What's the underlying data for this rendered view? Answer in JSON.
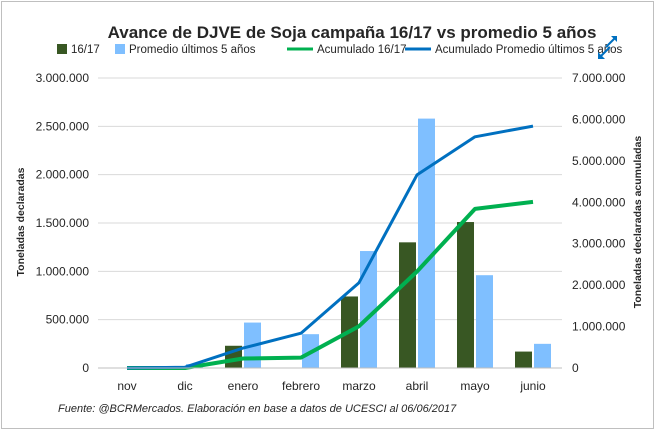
{
  "chart_data": {
    "type": "bar",
    "title": "Avance de DJVE de Soja campaña 16/17 vs promedio 5 años",
    "categories": [
      "nov",
      "dic",
      "enero",
      "febrero",
      "marzo",
      "abril",
      "mayo",
      "junio"
    ],
    "series": [
      {
        "name": "16/17",
        "type": "bar",
        "axis": "left",
        "color": "#385723",
        "values": [
          0,
          0,
          230000,
          5000,
          740000,
          1300000,
          1510000,
          170000
        ]
      },
      {
        "name": "Promedio últimos 5 años",
        "type": "bar",
        "axis": "left",
        "color": "#7fbfff",
        "values": [
          0,
          40000,
          470000,
          350000,
          1210000,
          2580000,
          960000,
          250000
        ]
      },
      {
        "name": "Acumulado 16/17",
        "type": "line",
        "axis": "right",
        "color": "#00b050",
        "values": [
          0,
          0,
          230000,
          250000,
          1010000,
          2330000,
          3840000,
          4010000
        ]
      },
      {
        "name": "Acumulado Promedio últimos 5 años",
        "type": "line",
        "axis": "right",
        "color": "#0070c0",
        "values": [
          0,
          20000,
          480000,
          840000,
          2060000,
          4660000,
          5580000,
          5840000
        ]
      }
    ],
    "ylabel": "Toneladas declaradas",
    "y2label": "Toneladas declaradas acumuladas",
    "ylim": [
      0,
      3000000
    ],
    "y2lim": [
      0,
      7000000
    ],
    "yticks": [
      "0",
      "500.000",
      "1.000.000",
      "1.500.000",
      "2.000.000",
      "2.500.000",
      "3.000.000"
    ],
    "y2ticks": [
      "0",
      "1.000.000",
      "2.000.000",
      "3.000.000",
      "4.000.000",
      "5.000.000",
      "6.000.000",
      "7.000.000"
    ],
    "grid": true,
    "legend": "top",
    "source": "Fuente: @BCRMercados. Elaboración en base a datos de UCESCI al 06/06/2017"
  }
}
